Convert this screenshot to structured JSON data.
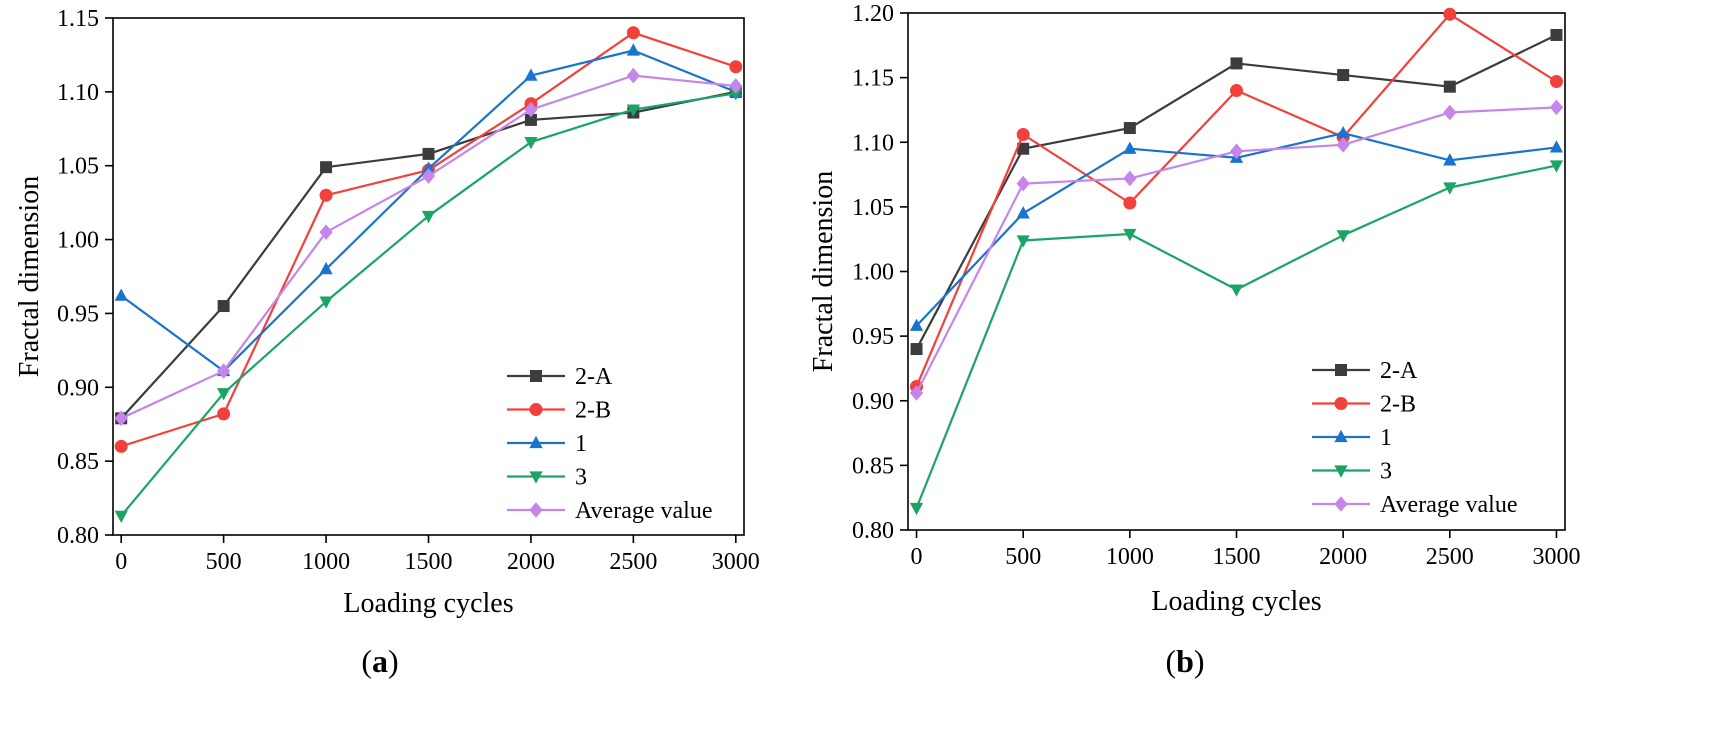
{
  "chart_data": [
    {
      "type": "line",
      "panel_label": "(a)",
      "panel_letter": "a",
      "xlabel": "Loading cycles",
      "ylabel": "Fractal dimension",
      "x": [
        0,
        500,
        1000,
        1500,
        2000,
        2500,
        3000
      ],
      "x_ticks": [
        "0",
        "500",
        "1000",
        "1500",
        "2000",
        "2500",
        "3000"
      ],
      "xlim": [
        -40,
        3040
      ],
      "ylim": [
        0.8,
        1.15
      ],
      "y_ticks": [
        "0.80",
        "0.85",
        "0.90",
        "0.95",
        "1.00",
        "1.05",
        "1.10",
        "1.15"
      ],
      "grid": false,
      "legend_position": "bottom-right",
      "series": [
        {
          "name": "2-A",
          "color": "#3c3c3c",
          "marker": "square",
          "values": [
            0.879,
            0.955,
            1.049,
            1.058,
            1.081,
            1.086,
            1.1
          ]
        },
        {
          "name": "2-B",
          "color": "#f2403a",
          "marker": "circle",
          "values": [
            0.86,
            0.882,
            1.03,
            1.047,
            1.092,
            1.14,
            1.117
          ]
        },
        {
          "name": "1",
          "color": "#1874cd",
          "marker": "triangle-up",
          "values": [
            0.962,
            0.911,
            0.98,
            1.048,
            1.111,
            1.128,
            1.1
          ]
        },
        {
          "name": "3",
          "color": "#1aa564",
          "marker": "triangle-down",
          "values": [
            0.813,
            0.896,
            0.958,
            1.016,
            1.066,
            1.088,
            1.099
          ]
        },
        {
          "name": "Average value",
          "color": "#c685e8",
          "marker": "diamond",
          "values": [
            0.879,
            0.911,
            1.005,
            1.043,
            1.088,
            1.111,
            1.104
          ]
        }
      ]
    },
    {
      "type": "line",
      "panel_label": "(b)",
      "panel_letter": "b",
      "xlabel": "Loading cycles",
      "ylabel": "Fractal dimension",
      "x": [
        0,
        500,
        1000,
        1500,
        2000,
        2500,
        3000
      ],
      "x_ticks": [
        "0",
        "500",
        "1000",
        "1500",
        "2000",
        "2500",
        "3000"
      ],
      "xlim": [
        -40,
        3040
      ],
      "ylim": [
        0.8,
        1.2
      ],
      "y_ticks": [
        "0.80",
        "0.85",
        "0.90",
        "0.95",
        "1.00",
        "1.05",
        "1.10",
        "1.15",
        "1.20"
      ],
      "grid": false,
      "legend_position": "bottom-right",
      "series": [
        {
          "name": "2-A",
          "color": "#3c3c3c",
          "marker": "square",
          "values": [
            0.94,
            1.095,
            1.111,
            1.161,
            1.152,
            1.143,
            1.183
          ]
        },
        {
          "name": "2-B",
          "color": "#f2403a",
          "marker": "circle",
          "values": [
            0.911,
            1.106,
            1.053,
            1.14,
            1.104,
            1.199,
            1.147
          ]
        },
        {
          "name": "1",
          "color": "#1874cd",
          "marker": "triangle-up",
          "values": [
            0.958,
            1.045,
            1.095,
            1.088,
            1.107,
            1.086,
            1.096
          ]
        },
        {
          "name": "3",
          "color": "#1aa564",
          "marker": "triangle-down",
          "values": [
            0.817,
            1.024,
            1.029,
            0.986,
            1.028,
            1.065,
            1.082
          ]
        },
        {
          "name": "Average value",
          "color": "#c685e8",
          "marker": "diamond",
          "values": [
            0.906,
            1.068,
            1.072,
            1.093,
            1.098,
            1.123,
            1.127
          ]
        }
      ]
    }
  ]
}
